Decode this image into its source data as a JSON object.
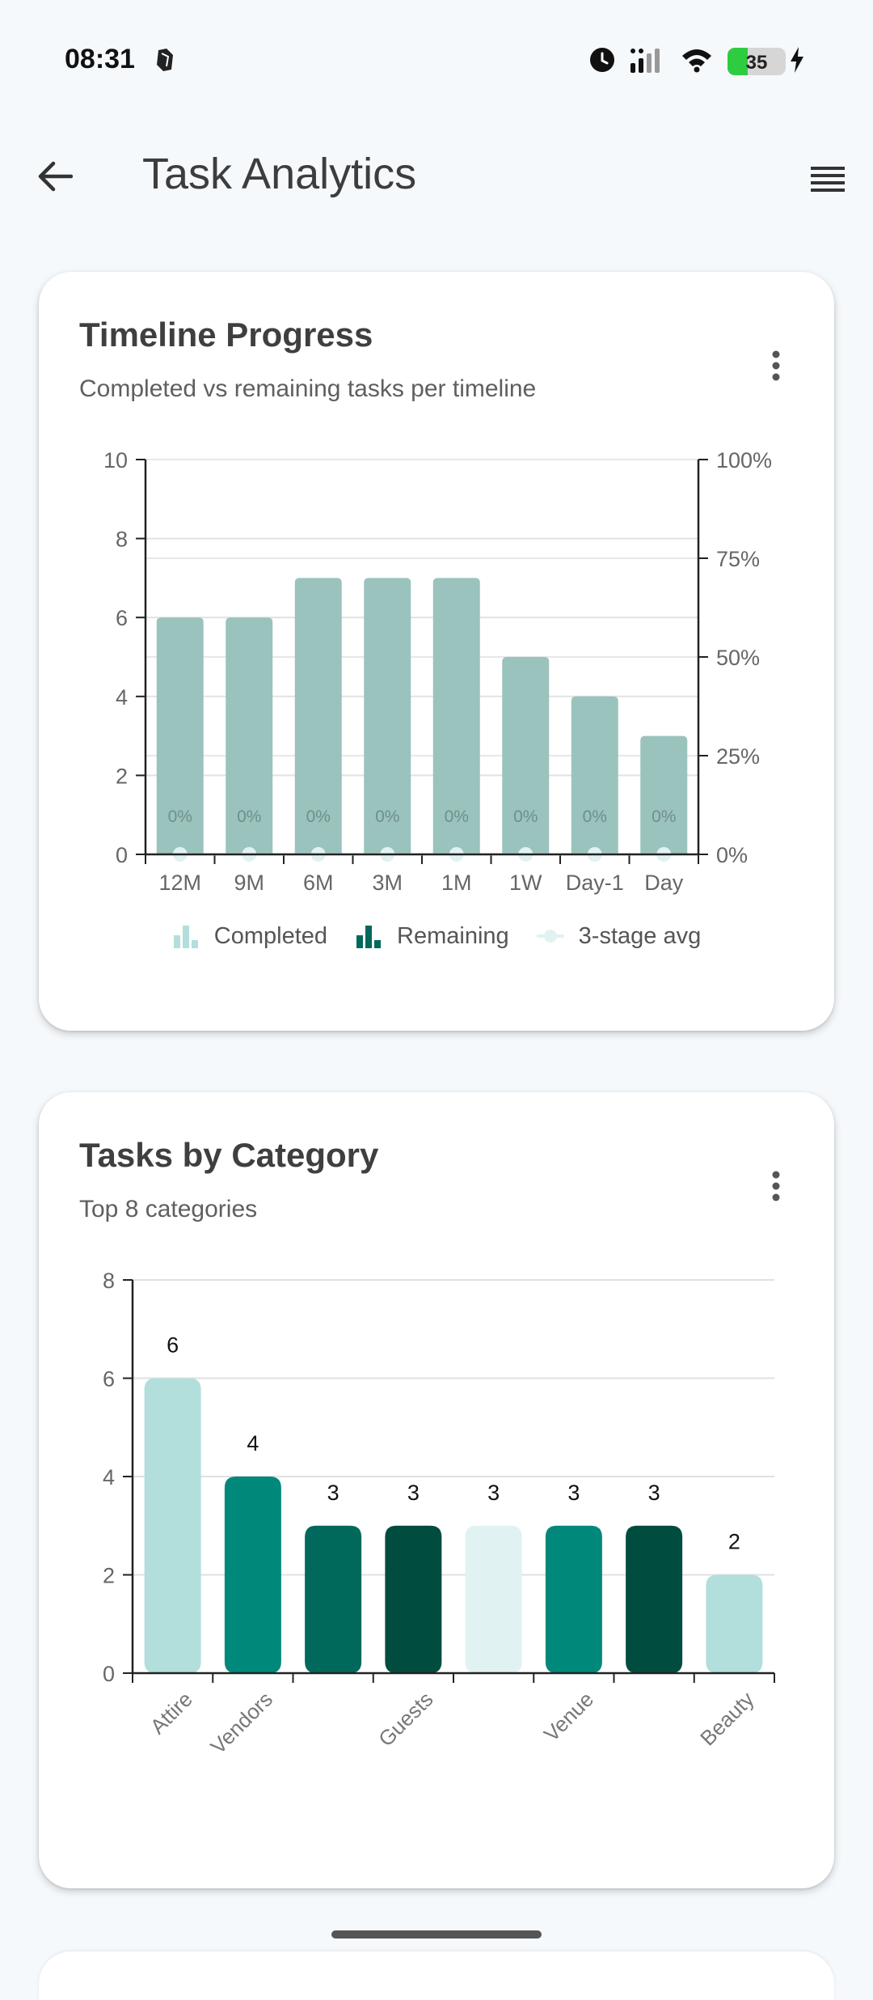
{
  "status": {
    "time": "08:31",
    "battery": "35",
    "battery_level_percent": 35
  },
  "appbar": {
    "title": "Task Analytics",
    "back_icon": "arrow-left-icon",
    "menu_icon": "list-menu-icon"
  },
  "cards": [
    {
      "title": "Timeline Progress",
      "subtitle": "Completed vs remaining tasks per timeline",
      "legend": [
        {
          "label": "Completed",
          "icon": "bar-chart-icon",
          "color": "#b2dfdb"
        },
        {
          "label": "Remaining",
          "icon": "bar-chart-icon",
          "color": "#00695c"
        },
        {
          "label": "3-stage avg",
          "icon": "line-dot-icon",
          "color": "#e0f2f1"
        }
      ]
    },
    {
      "title": "Tasks by Category",
      "subtitle": "Top 8 categories"
    }
  ],
  "chart_data": [
    {
      "type": "bar",
      "categories": [
        "12M",
        "9M",
        "6M",
        "3M",
        "1M",
        "1W",
        "Day-1",
        "Day"
      ],
      "series": [
        {
          "name": "Completed",
          "values": [
            0,
            0,
            0,
            0,
            0,
            0,
            0,
            0
          ]
        },
        {
          "name": "Remaining",
          "values": [
            6,
            6,
            7,
            7,
            7,
            5,
            4,
            3
          ]
        },
        {
          "name": "3-stage avg",
          "values": [
            0,
            0,
            0,
            0,
            0,
            0,
            0,
            0
          ],
          "axis": "right"
        }
      ],
      "bar_labels": [
        "0%",
        "0%",
        "0%",
        "0%",
        "0%",
        "0%",
        "0%",
        "0%"
      ],
      "ylim": [
        0,
        10
      ],
      "yticks": [
        "0",
        "2",
        "4",
        "6",
        "8",
        "10"
      ],
      "y2lim": [
        0,
        100
      ],
      "y2ticks": [
        "0%",
        "25%",
        "50%",
        "75%",
        "100%"
      ],
      "bar_color": "#9ac3bd",
      "grid": true,
      "legend_position": "bottom"
    },
    {
      "type": "bar",
      "categories": [
        "Attire",
        "Vendors",
        "",
        "Guests",
        "",
        "Venue",
        "",
        "Beauty"
      ],
      "values": [
        6,
        4,
        3,
        3,
        3,
        3,
        3,
        2
      ],
      "value_labels": [
        "6",
        "4",
        "3",
        "3",
        "3",
        "3",
        "3",
        "2"
      ],
      "colors": [
        "#b2dfdb",
        "#00897b",
        "#00695c",
        "#004d40",
        "#e0f2f1",
        "#00897b",
        "#004d40",
        "#b2dfdb"
      ],
      "ylim": [
        0,
        8
      ],
      "yticks": [
        "0",
        "2",
        "4",
        "6",
        "8"
      ],
      "grid": true
    }
  ]
}
